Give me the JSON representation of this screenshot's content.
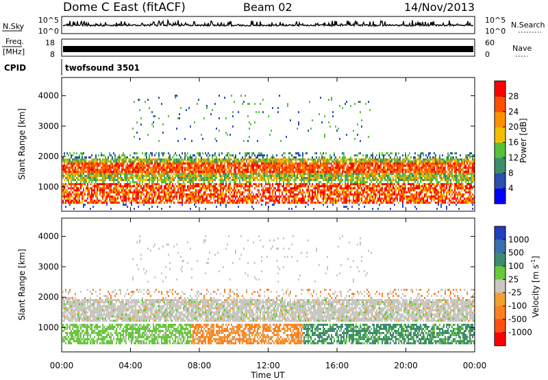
{
  "header": {
    "station": "Dome C East (fitACF)",
    "beam": "Beam 02",
    "date": "14/Nov/2013"
  },
  "top_panels": {
    "nsky_label": "N.Sky",
    "nsearch_label": "N.Search",
    "nsky_ticks": [
      "10^5",
      "10^0"
    ],
    "nsearch_ticks": [
      "10^5",
      "10^0"
    ],
    "freq_label_line1": "Freq.",
    "freq_label_line2": "[MHz]",
    "freq_ticks": [
      "18",
      "8"
    ],
    "nave_label": "Nave",
    "nave_ticks": [
      "60",
      "0"
    ],
    "cpid_label": "CPID",
    "cpid_value": "twofsound 3501"
  },
  "colors": {
    "power_scale": [
      "#0000ff",
      "#2a4fb0",
      "#3d8c6e",
      "#55c23a",
      "#f0c000",
      "#ff9000",
      "#ff5000",
      "#ff0000"
    ],
    "velocity_scale": [
      "#2040c0",
      "#3a6fb0",
      "#3d8c6e",
      "#66c83a",
      "#c8c8c0",
      "#f0a030",
      "#ff8020",
      "#ff5010",
      "#ff0000"
    ]
  },
  "chart_data": [
    {
      "type": "heatmap",
      "title": "",
      "xlabel": "",
      "ylabel": "Slant Range [km]",
      "x_ticks": [
        "00:00",
        "04:00",
        "08:00",
        "12:00",
        "16:00",
        "20:00",
        "00:00"
      ],
      "y_ticks": [
        1000,
        2000,
        3000,
        4000
      ],
      "ylim": [
        200,
        4600
      ],
      "xlim_hours": [
        0,
        24
      ],
      "colorbar": {
        "label": "Power [dB]",
        "ticks": [
          4,
          8,
          12,
          16,
          20,
          24,
          28
        ],
        "range": [
          0,
          32
        ]
      },
      "features": [
        {
          "name": "far-range band",
          "range_km": [
            1300,
            1900
          ],
          "hours": [
            0,
            24
          ],
          "level": "high"
        },
        {
          "name": "near-range band",
          "range_km": [
            500,
            1100
          ],
          "hours": [
            0,
            24
          ],
          "level": "high"
        },
        {
          "name": "upper scatter",
          "range_km": [
            2600,
            4100
          ],
          "hours": [
            4,
            18
          ],
          "level": "low"
        }
      ]
    },
    {
      "type": "heatmap",
      "title": "",
      "xlabel": "Time UT",
      "ylabel": "Slant Range [km]",
      "x_ticks": [
        "00:00",
        "04:00",
        "08:00",
        "12:00",
        "16:00",
        "20:00",
        "00:00"
      ],
      "y_ticks": [
        1000,
        2000,
        3000,
        4000
      ],
      "ylim": [
        200,
        4600
      ],
      "xlim_hours": [
        0,
        24
      ],
      "colorbar": {
        "label": "Velocity [m s-1]",
        "ticks": [
          1000,
          500,
          100,
          25,
          -25,
          -100,
          -500,
          -1000
        ]
      },
      "features": [
        {
          "name": "far-range band",
          "range_km": [
            1300,
            1900
          ],
          "hours": [
            0,
            24
          ],
          "velocity": "near zero"
        },
        {
          "name": "near-range band",
          "range_km": [
            500,
            1100
          ],
          "hours": [
            0,
            7.5
          ],
          "velocity": "positive"
        },
        {
          "name": "near-range band",
          "range_km": [
            500,
            1100
          ],
          "hours": [
            7.5,
            14
          ],
          "velocity": "negative"
        },
        {
          "name": "near-range band",
          "range_km": [
            500,
            1100
          ],
          "hours": [
            14,
            24
          ],
          "velocity": "positive"
        }
      ]
    }
  ]
}
